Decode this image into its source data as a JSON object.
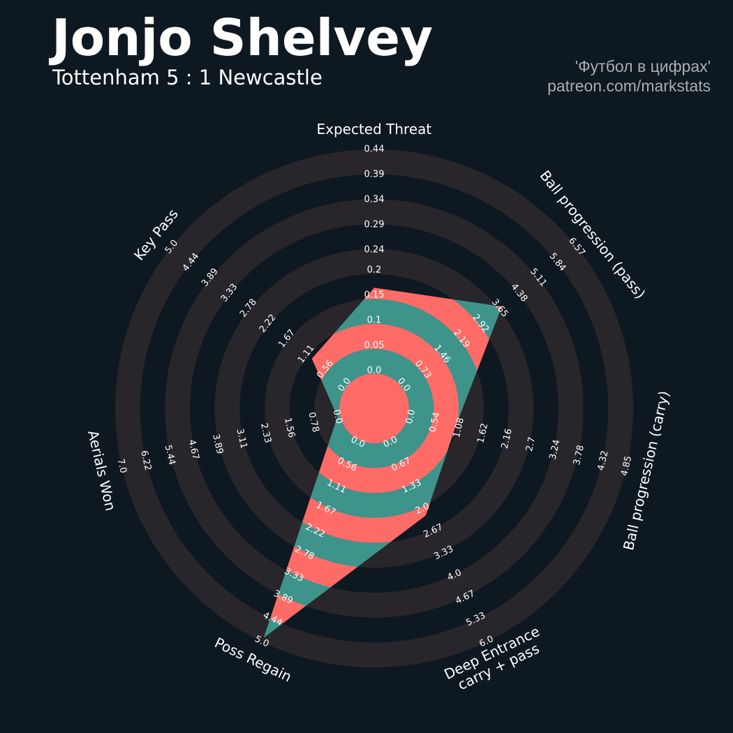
{
  "chart_data": {
    "type": "radar",
    "title": "Jonjo Shelvey",
    "subtitle": "Tottenham 5 : 1 Newcastle",
    "annotations": [
      "'Футбол в цифрах'",
      "patreon.com/markstats"
    ],
    "categories": [
      "Expected Threat",
      "Ball progression (pass)",
      "Ball progression (carry)",
      "Deep Entrance\ncarry + pass",
      "Poss Regain",
      "Aerials Won",
      "Key Pass"
    ],
    "values": [
      0.165,
      3.73,
      1.0,
      2.2,
      4.9,
      0,
      0.95
    ],
    "axes": [
      {
        "lim": [
          0,
          0.44
        ],
        "ticks": [
          {
            "value": 0,
            "label": "0.0"
          },
          0.05,
          0.1,
          0.15,
          0.2,
          0.24,
          0.29,
          0.34,
          0.39,
          0.44
        ]
      },
      {
        "lim": [
          0,
          6.57
        ],
        "ticks": [
          {
            "value": 0,
            "label": "0.0"
          },
          0.73,
          1.46,
          2.19,
          2.92,
          3.65,
          4.38,
          5.11,
          5.84,
          6.57
        ]
      },
      {
        "lim": [
          0,
          4.85
        ],
        "ticks": [
          {
            "value": 0,
            "label": "0.0"
          },
          0.54,
          1.08,
          1.62,
          2.16,
          2.7,
          3.24,
          3.78,
          4.32,
          4.85
        ]
      },
      {
        "lim": [
          0,
          6
        ],
        "ticks": [
          {
            "value": 0,
            "label": "0.0"
          },
          0.67,
          1.33,
          {
            "value": 2,
            "label": "2.0"
          },
          2.67,
          3.33,
          {
            "value": 4,
            "label": "4.0"
          },
          4.67,
          5.33,
          {
            "value": 6,
            "label": "6.0"
          }
        ]
      },
      {
        "lim": [
          0,
          5
        ],
        "ticks": [
          {
            "value": 0,
            "label": "0.0"
          },
          0.56,
          1.11,
          1.67,
          2.22,
          2.78,
          3.33,
          3.89,
          4.44,
          {
            "value": 5,
            "label": "5.0"
          }
        ]
      },
      {
        "lim": [
          0,
          7
        ],
        "ticks": [
          {
            "value": 0,
            "label": "0.0"
          },
          0.78,
          1.56,
          2.33,
          3.11,
          3.89,
          4.67,
          5.44,
          6.22,
          {
            "value": 7,
            "label": "7.0"
          }
        ]
      },
      {
        "lim": [
          0,
          5
        ],
        "ticks": [
          {
            "value": 0,
            "label": "0.0"
          },
          0.56,
          1.11,
          1.67,
          2.22,
          2.78,
          3.33,
          3.89,
          4.44,
          {
            "value": 5,
            "label": "5.0"
          }
        ]
      }
    ],
    "colors": [
      "#ff6b67",
      "#3e938b"
    ],
    "ring_color": "#29262b"
  }
}
